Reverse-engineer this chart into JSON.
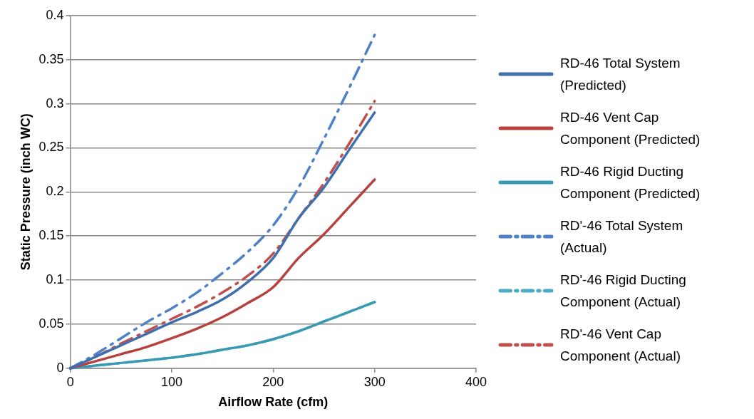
{
  "chart_data": {
    "type": "line",
    "xlabel": "Airflow Rate (cfm)",
    "ylabel": "Static Pressure (inch WC)",
    "x": [
      0,
      25,
      50,
      75,
      100,
      125,
      150,
      175,
      200,
      225,
      250,
      275,
      300
    ],
    "xlim": [
      0,
      400
    ],
    "xticks": [
      0,
      100,
      200,
      300,
      400
    ],
    "ylim": [
      0,
      0.4
    ],
    "yticks": [
      0,
      0.05,
      0.1,
      0.15,
      0.2,
      0.25,
      0.3,
      0.35,
      0.4
    ],
    "grid": "y",
    "legend": "right",
    "marker": "none",
    "series": [
      {
        "name": "RD-46 Total System (Predicted)",
        "color": "#3f6fad",
        "line_style": "solid",
        "values": [
          0,
          0.013,
          0.026,
          0.039,
          0.052,
          0.064,
          0.078,
          0.098,
          0.125,
          0.17,
          0.205,
          0.248,
          0.29
        ]
      },
      {
        "name": "RD-46 Vent Cap Component (Predicted)",
        "color": "#b6413e",
        "line_style": "solid",
        "values": [
          0,
          0.008,
          0.016,
          0.024,
          0.034,
          0.045,
          0.058,
          0.074,
          0.092,
          0.125,
          0.152,
          0.183,
          0.214
        ]
      },
      {
        "name": "RD-46 Rigid Ducting Component (Predicted)",
        "color": "#3a9ab3",
        "line_style": "solid",
        "values": [
          0,
          0.003,
          0.006,
          0.009,
          0.012,
          0.016,
          0.021,
          0.026,
          0.033,
          0.042,
          0.053,
          0.064,
          0.075
        ]
      },
      {
        "name": "RD'-46 Total System (Actual)",
        "color": "#4f81c9",
        "line_style": "dashed",
        "values": [
          0,
          0.016,
          0.034,
          0.052,
          0.068,
          0.086,
          0.108,
          0.132,
          0.162,
          0.205,
          0.26,
          0.318,
          0.378
        ]
      },
      {
        "name": "RD'-46 Rigid Ducting Component (Actual)",
        "color": "#4bacc6",
        "line_style": "dashed",
        "values": [
          0,
          0.003,
          0.006,
          0.009,
          0.012,
          0.016,
          0.021,
          0.026,
          0.033,
          0.042,
          0.053,
          0.064,
          0.075
        ]
      },
      {
        "name": "RD'-46 Vent Cap Component (Actual)",
        "color": "#c0504d",
        "line_style": "dashed",
        "values": [
          0,
          0.013,
          0.028,
          0.042,
          0.056,
          0.07,
          0.086,
          0.105,
          0.13,
          0.17,
          0.21,
          0.255,
          0.303
        ]
      }
    ]
  }
}
